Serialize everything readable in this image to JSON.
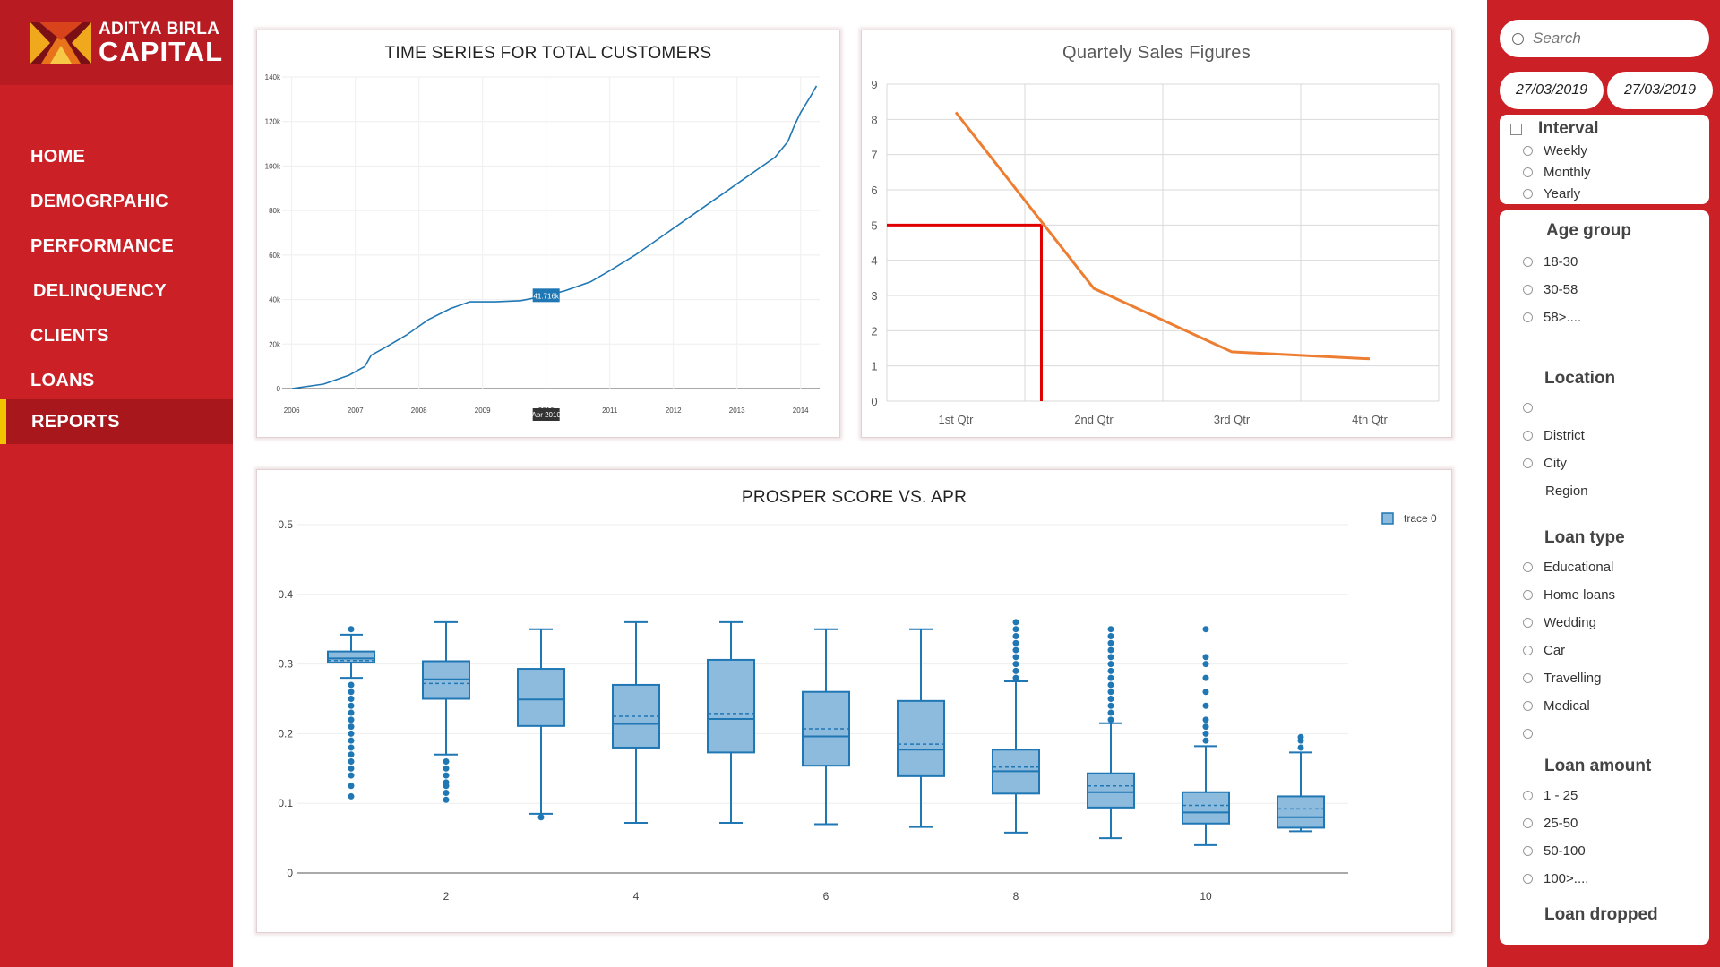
{
  "brand": {
    "line1": "ADITYA BIRLA",
    "line2": "CAPITAL"
  },
  "nav": {
    "items": [
      {
        "label": "HOME"
      },
      {
        "label": "DEMOGRPAHIC"
      },
      {
        "label": "PERFORMANCE"
      },
      {
        "label": "DELINQUENCY"
      },
      {
        "label": "CLIENTS"
      },
      {
        "label": "LOANS"
      },
      {
        "label": "REPORTS"
      }
    ],
    "active": "REPORTS"
  },
  "colors": {
    "brand_red": "#cb2026",
    "active_bar": "#f2c400",
    "line_blue": "#1f77b4",
    "box_fill": "#8dbbde",
    "sales_line": "#ed7d31",
    "marker_red": "#e00000"
  },
  "filters": {
    "search_placeholder": "Search",
    "date_from": "27/03/2019",
    "date_to": "27/03/2019",
    "interval": {
      "title": "Interval",
      "options": [
        "Weekly",
        "Monthly",
        "Yearly"
      ]
    },
    "age_group": {
      "title": "Age group",
      "options": [
        "18-30",
        "30-58",
        "58>...."
      ]
    },
    "location": {
      "title": "Location",
      "options": [
        "",
        "District",
        "City"
      ],
      "extra": "Region"
    },
    "loan_type": {
      "title": "Loan type",
      "options": [
        "Educational",
        "Home loans",
        "Wedding",
        "Car",
        "Travelling",
        "Medical",
        ""
      ]
    },
    "loan_amount": {
      "title": "Loan amount",
      "options": [
        "1 - 25",
        "25-50",
        "50-100",
        "100>...."
      ]
    },
    "loan_dropped": {
      "title": "Loan dropped"
    }
  },
  "chart_data": [
    {
      "type": "line",
      "title": "TIME SERIES FOR TOTAL CUSTOMERS",
      "x_ticks": [
        "2006",
        "2007",
        "2008",
        "2009",
        "2010",
        "2011",
        "2012",
        "2013",
        "2014"
      ],
      "y_ticks": [
        "0",
        "20k",
        "40k",
        "60k",
        "80k",
        "100k",
        "120k",
        "140k"
      ],
      "ylim": [
        0,
        140000
      ],
      "x": [
        2006.0,
        2006.5,
        2006.9,
        2007.15,
        2007.25,
        2007.5,
        2007.8,
        2008.0,
        2008.15,
        2008.5,
        2008.8,
        2009.2,
        2009.6,
        2010.0,
        2010.3,
        2010.7,
        2011.0,
        2011.4,
        2011.8,
        2012.2,
        2012.5,
        2012.9,
        2013.05,
        2013.3,
        2013.6,
        2013.8,
        2013.9,
        2014.0,
        2014.15,
        2014.25
      ],
      "y": [
        0,
        2000,
        6000,
        10000,
        15000,
        19000,
        24000,
        28000,
        31000,
        36000,
        39000,
        39000,
        39500,
        41716,
        44000,
        48000,
        53000,
        60000,
        68000,
        76000,
        82000,
        90000,
        93000,
        98000,
        104000,
        111000,
        118000,
        124000,
        131000,
        136000
      ],
      "hover_label": "41.716k",
      "hover_x_label": "Apr 2010"
    },
    {
      "type": "line",
      "title": "Quartely Sales Figures",
      "categories": [
        "1st Qtr",
        "2nd Qtr",
        "3rd Qtr",
        "4th Qtr"
      ],
      "values": [
        8.2,
        3.2,
        1.4,
        1.2
      ],
      "y_ticks": [
        "0",
        "1",
        "2",
        "3",
        "4",
        "5",
        "6",
        "7",
        "8",
        "9"
      ],
      "ylim": [
        0,
        9
      ],
      "marker": {
        "x_fraction": 0.62,
        "y": 5
      }
    },
    {
      "type": "box",
      "title": "PROSPER SCORE VS. APR",
      "legend": "trace 0",
      "x_ticks": [
        "2",
        "4",
        "6",
        "8",
        "10"
      ],
      "y_ticks": [
        "0",
        "0.1",
        "0.2",
        "0.3",
        "0.4",
        "0.5"
      ],
      "ylim": [
        0,
        0.5
      ],
      "boxes": [
        {
          "x": 1,
          "min": 0.28,
          "q1": 0.302,
          "median": 0.308,
          "mean": 0.305,
          "q3": 0.318,
          "max": 0.342,
          "outliers": [
            0.11,
            0.125,
            0.14,
            0.15,
            0.16,
            0.17,
            0.18,
            0.19,
            0.2,
            0.21,
            0.22,
            0.23,
            0.24,
            0.25,
            0.26,
            0.27,
            0.35
          ]
        },
        {
          "x": 2,
          "min": 0.17,
          "q1": 0.25,
          "median": 0.278,
          "mean": 0.272,
          "q3": 0.304,
          "max": 0.36,
          "outliers": [
            0.105,
            0.115,
            0.125,
            0.13,
            0.14,
            0.15,
            0.16
          ]
        },
        {
          "x": 3,
          "min": 0.085,
          "q1": 0.211,
          "median": 0.249,
          "mean": 0.249,
          "q3": 0.293,
          "max": 0.35,
          "outliers": [
            0.08
          ]
        },
        {
          "x": 4,
          "min": 0.072,
          "q1": 0.18,
          "median": 0.214,
          "mean": 0.225,
          "q3": 0.27,
          "max": 0.36,
          "outliers": []
        },
        {
          "x": 5,
          "min": 0.072,
          "q1": 0.173,
          "median": 0.221,
          "mean": 0.229,
          "q3": 0.306,
          "max": 0.36,
          "outliers": []
        },
        {
          "x": 6,
          "min": 0.07,
          "q1": 0.154,
          "median": 0.196,
          "mean": 0.207,
          "q3": 0.26,
          "max": 0.35,
          "outliers": []
        },
        {
          "x": 7,
          "min": 0.066,
          "q1": 0.139,
          "median": 0.177,
          "mean": 0.185,
          "q3": 0.247,
          "max": 0.35,
          "outliers": []
        },
        {
          "x": 8,
          "min": 0.058,
          "q1": 0.114,
          "median": 0.146,
          "mean": 0.152,
          "q3": 0.177,
          "max": 0.275,
          "outliers": [
            0.28,
            0.29,
            0.3,
            0.31,
            0.32,
            0.33,
            0.34,
            0.35,
            0.36
          ]
        },
        {
          "x": 9,
          "min": 0.05,
          "q1": 0.094,
          "median": 0.116,
          "mean": 0.125,
          "q3": 0.143,
          "max": 0.215,
          "outliers": [
            0.22,
            0.23,
            0.24,
            0.25,
            0.26,
            0.27,
            0.28,
            0.29,
            0.3,
            0.31,
            0.32,
            0.33,
            0.34,
            0.35
          ]
        },
        {
          "x": 10,
          "min": 0.04,
          "q1": 0.071,
          "median": 0.087,
          "mean": 0.097,
          "q3": 0.116,
          "max": 0.182,
          "outliers": [
            0.19,
            0.2,
            0.21,
            0.22,
            0.24,
            0.26,
            0.28,
            0.3,
            0.31,
            0.35
          ]
        },
        {
          "x": 11,
          "min": 0.06,
          "q1": 0.065,
          "median": 0.08,
          "mean": 0.092,
          "q3": 0.11,
          "max": 0.173,
          "outliers": [
            0.18,
            0.19,
            0.195
          ]
        }
      ]
    }
  ]
}
